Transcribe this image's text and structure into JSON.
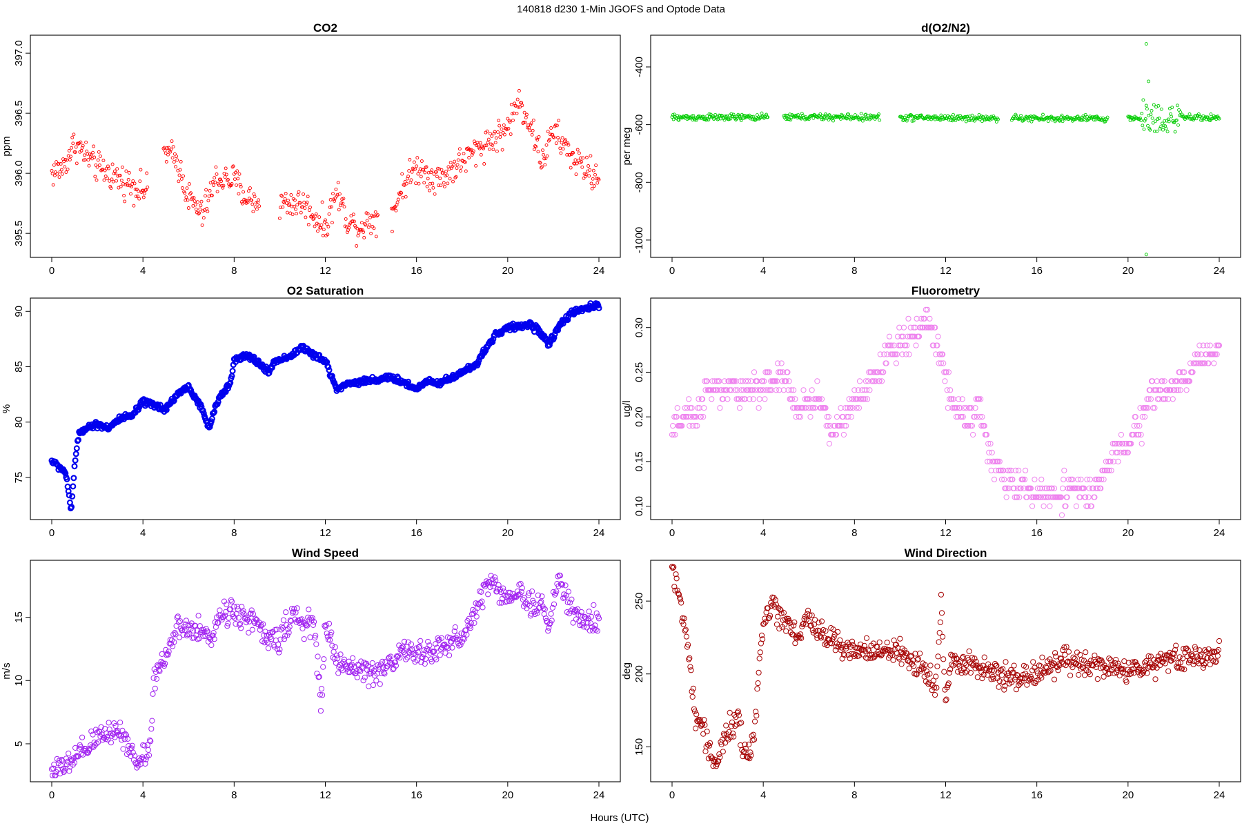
{
  "figure": {
    "title": "140818   d230   1-Min  JGOFS and Optode Data",
    "xlabel": "Hours (UTC)"
  },
  "chart_data": [
    {
      "type": "scatter",
      "id": "co2",
      "title": "CO2",
      "ylabel": "ppm",
      "color": "#ff0000",
      "xlim": [
        0,
        24
      ],
      "xticks": [
        0,
        4,
        8,
        12,
        16,
        20,
        24
      ],
      "ylim": [
        395.3,
        397.15
      ],
      "yticks": [
        "395.5",
        "396.0",
        "396.5",
        "397.0"
      ],
      "gaps": [
        [
          4.2,
          4.9
        ],
        [
          9.1,
          10.0
        ],
        [
          14.3,
          14.9
        ]
      ],
      "series": [
        {
          "name": "CO2",
          "knots": [
            [
              0,
              396.0
            ],
            [
              0.5,
              396.05
            ],
            [
              1.0,
              396.25
            ],
            [
              1.5,
              396.15
            ],
            [
              2.0,
              396.05
            ],
            [
              3.0,
              395.95
            ],
            [
              4.2,
              395.85
            ],
            [
              4.9,
              396.2
            ],
            [
              5.5,
              396.1
            ],
            [
              6.0,
              395.8
            ],
            [
              6.6,
              395.65
            ],
            [
              7.2,
              395.95
            ],
            [
              8.0,
              395.95
            ],
            [
              8.5,
              395.8
            ],
            [
              9.1,
              395.75
            ],
            [
              10.0,
              395.75
            ],
            [
              11.0,
              395.75
            ],
            [
              12.0,
              395.55
            ],
            [
              12.5,
              395.85
            ],
            [
              13.0,
              395.6
            ],
            [
              13.5,
              395.55
            ],
            [
              14.3,
              395.65
            ],
            [
              14.9,
              395.65
            ],
            [
              15.4,
              395.9
            ],
            [
              16.0,
              396.05
            ],
            [
              17.0,
              395.95
            ],
            [
              18.0,
              396.1
            ],
            [
              19.0,
              396.25
            ],
            [
              19.9,
              396.35
            ],
            [
              20.5,
              396.6
            ],
            [
              21.0,
              396.4
            ],
            [
              21.5,
              396.1
            ],
            [
              22.0,
              396.35
            ],
            [
              23.0,
              396.1
            ],
            [
              24.0,
              395.95
            ]
          ],
          "noise": 0.09,
          "clip": [
            395.3,
            397.1
          ]
        }
      ],
      "annotations": []
    },
    {
      "type": "scatter",
      "id": "do2n2",
      "title": "d(O2/N2)",
      "ylabel": "per meg",
      "color": "#00cc00",
      "xlim": [
        0,
        24
      ],
      "xticks": [
        0,
        4,
        8,
        12,
        16,
        20,
        24
      ],
      "ylim": [
        -1060,
        -290
      ],
      "yticks": [
        "-1000",
        "-800",
        "-600",
        "-400"
      ],
      "gaps": [
        [
          4.2,
          4.9
        ],
        [
          9.1,
          10.0
        ],
        [
          14.3,
          14.9
        ],
        [
          19.1,
          20.0
        ]
      ],
      "series": [
        {
          "name": "d(O2/N2)",
          "knots": [
            [
              0,
              -575
            ],
            [
              4.2,
              -575
            ],
            [
              4.9,
              -573
            ],
            [
              9.1,
              -575
            ],
            [
              10.0,
              -575
            ],
            [
              14.3,
              -578
            ],
            [
              14.9,
              -578
            ],
            [
              19.1,
              -580
            ],
            [
              20.0,
              -578
            ],
            [
              24.0,
              -575
            ]
          ],
          "noise": 8,
          "noise_after": [
            20.6,
            22.3,
            45
          ],
          "clip": [
            -1060,
            -290
          ]
        }
      ],
      "annotations": [
        {
          "x": 20.8,
          "y": -320
        },
        {
          "x": 20.8,
          "y": -1050
        },
        {
          "x": 20.9,
          "y": -450
        }
      ]
    },
    {
      "type": "scatter",
      "id": "o2sat",
      "title": "O2 Saturation",
      "ylabel": "%",
      "color": "#0000ee",
      "xlim": [
        0,
        24
      ],
      "xticks": [
        0,
        4,
        8,
        12,
        16,
        20,
        24
      ],
      "ylim": [
        71.2,
        91.2
      ],
      "yticks": [
        "75",
        "80",
        "85",
        "90"
      ],
      "gaps": [],
      "series": [
        {
          "name": "O2 Saturation",
          "knots": [
            [
              0,
              76.5
            ],
            [
              0.3,
              76
            ],
            [
              0.6,
              75.5
            ],
            [
              0.85,
              72
            ],
            [
              1.0,
              76
            ],
            [
              1.2,
              79
            ],
            [
              1.5,
              79.5
            ],
            [
              2.0,
              79.8
            ],
            [
              2.5,
              79.5
            ],
            [
              3.0,
              80.3
            ],
            [
              3.5,
              80.5
            ],
            [
              4.0,
              81.8
            ],
            [
              4.5,
              81.5
            ],
            [
              5.0,
              81.2
            ],
            [
              5.5,
              82.5
            ],
            [
              6.0,
              83.2
            ],
            [
              6.5,
              81.5
            ],
            [
              6.9,
              79.5
            ],
            [
              7.3,
              82
            ],
            [
              7.8,
              83.5
            ],
            [
              8.0,
              85.5
            ],
            [
              8.5,
              86
            ],
            [
              9.0,
              85.5
            ],
            [
              9.5,
              84.5
            ],
            [
              9.8,
              85.5
            ],
            [
              10.5,
              86
            ],
            [
              11.0,
              86.8
            ],
            [
              11.5,
              86
            ],
            [
              12.0,
              85.5
            ],
            [
              12.5,
              83
            ],
            [
              13.0,
              83.5
            ],
            [
              14.0,
              83.8
            ],
            [
              15.0,
              84
            ],
            [
              16.0,
              83
            ],
            [
              16.5,
              83.8
            ],
            [
              17.0,
              83.5
            ],
            [
              17.5,
              84
            ],
            [
              18.5,
              85
            ],
            [
              19.0,
              86.5
            ],
            [
              19.5,
              88
            ],
            [
              20.0,
              88.5
            ],
            [
              21.0,
              88.8
            ],
            [
              21.5,
              88
            ],
            [
              21.8,
              87
            ],
            [
              22.2,
              88.5
            ],
            [
              22.6,
              89.5
            ],
            [
              23.0,
              90
            ],
            [
              23.5,
              90.3
            ],
            [
              24.0,
              90.6
            ]
          ],
          "noise": 0.2,
          "clip": [
            71.3,
            91.1
          ]
        }
      ],
      "annotations": []
    },
    {
      "type": "scatter",
      "id": "fluor",
      "title": "Fluorometry",
      "ylabel": "ug/l",
      "color": "#ee82ee",
      "xlim": [
        0,
        24
      ],
      "xticks": [
        0,
        4,
        8,
        12,
        16,
        20,
        24
      ],
      "ylim": [
        0.085,
        0.333
      ],
      "yticks": [
        "0.10",
        "0.15",
        "0.20",
        "0.25",
        "0.30"
      ],
      "gaps": [],
      "series": [
        {
          "name": "Fluorometry",
          "knots": [
            [
              0,
              0.18
            ],
            [
              0.5,
              0.2
            ],
            [
              1.0,
              0.2
            ],
            [
              1.5,
              0.23
            ],
            [
              2.5,
              0.23
            ],
            [
              3.5,
              0.23
            ],
            [
              4.5,
              0.24
            ],
            [
              5.0,
              0.24
            ],
            [
              5.5,
              0.21
            ],
            [
              6.5,
              0.22
            ],
            [
              7.0,
              0.18
            ],
            [
              7.5,
              0.2
            ],
            [
              8.5,
              0.23
            ],
            [
              9.5,
              0.27
            ],
            [
              10.5,
              0.29
            ],
            [
              11.2,
              0.31
            ],
            [
              11.8,
              0.27
            ],
            [
              12.2,
              0.22
            ],
            [
              13.0,
              0.2
            ],
            [
              13.5,
              0.21
            ],
            [
              14.0,
              0.15
            ],
            [
              14.5,
              0.13
            ],
            [
              15.5,
              0.12
            ],
            [
              16.5,
              0.11
            ],
            [
              17.5,
              0.12
            ],
            [
              18.5,
              0.11
            ],
            [
              19.0,
              0.14
            ],
            [
              19.5,
              0.16
            ],
            [
              20.0,
              0.17
            ],
            [
              20.6,
              0.19
            ],
            [
              21.0,
              0.23
            ],
            [
              22.0,
              0.23
            ],
            [
              22.5,
              0.24
            ],
            [
              23.0,
              0.26
            ],
            [
              23.5,
              0.27
            ],
            [
              24.0,
              0.28
            ]
          ],
          "noise": 0.012,
          "quantize": 0.01,
          "clip": [
            0.09,
            0.33
          ]
        }
      ],
      "annotations": []
    },
    {
      "type": "scatter",
      "id": "wspd",
      "title": "Wind Speed",
      "ylabel": "m/s",
      "color": "#a020f0",
      "xlim": [
        0,
        24
      ],
      "xticks": [
        0,
        4,
        8,
        12,
        16,
        20,
        24
      ],
      "ylim": [
        2.0,
        19.5
      ],
      "yticks": [
        "5",
        "10",
        "15"
      ],
      "gaps": [],
      "series": [
        {
          "name": "Wind Speed",
          "knots": [
            [
              0,
              3.0
            ],
            [
              0.5,
              3.0
            ],
            [
              1.0,
              3.8
            ],
            [
              1.5,
              4.5
            ],
            [
              2.0,
              5.5
            ],
            [
              2.5,
              6.0
            ],
            [
              3.0,
              6.0
            ],
            [
              3.5,
              4.5
            ],
            [
              3.8,
              3.2
            ],
            [
              4.0,
              4.2
            ],
            [
              4.3,
              4.5
            ],
            [
              4.5,
              10.5
            ],
            [
              5.0,
              12.0
            ],
            [
              5.5,
              14.0
            ],
            [
              6.0,
              14.0
            ],
            [
              7.0,
              13.5
            ],
            [
              7.5,
              15.5
            ],
            [
              8.0,
              15.5
            ],
            [
              8.5,
              15.0
            ],
            [
              9.0,
              14.5
            ],
            [
              9.5,
              13.0
            ],
            [
              10.0,
              13.5
            ],
            [
              10.5,
              15.0
            ],
            [
              11.0,
              14.5
            ],
            [
              11.5,
              14.5
            ],
            [
              11.8,
              8.0
            ],
            [
              12.0,
              14.5
            ],
            [
              12.5,
              11.5
            ],
            [
              13.0,
              11.0
            ],
            [
              13.5,
              11.0
            ],
            [
              14.0,
              10.5
            ],
            [
              14.5,
              11.0
            ],
            [
              15.0,
              11.5
            ],
            [
              15.5,
              12.5
            ],
            [
              16.0,
              12.0
            ],
            [
              17.0,
              12.5
            ],
            [
              18.0,
              13.5
            ],
            [
              18.5,
              15.0
            ],
            [
              19.0,
              17.5
            ],
            [
              19.5,
              17.5
            ],
            [
              20.0,
              16.5
            ],
            [
              20.5,
              17.0
            ],
            [
              21.0,
              16.0
            ],
            [
              21.5,
              16.0
            ],
            [
              21.8,
              14.0
            ],
            [
              22.2,
              18.0
            ],
            [
              22.6,
              16.5
            ],
            [
              23.0,
              15.0
            ],
            [
              23.5,
              14.5
            ],
            [
              24.0,
              15.0
            ]
          ],
          "noise": 0.7,
          "clip": [
            2.5,
            19.1
          ]
        }
      ],
      "annotations": []
    },
    {
      "type": "scatter",
      "id": "wdir",
      "title": "Wind Direction",
      "ylabel": "deg",
      "color": "#a50000",
      "xlim": [
        0,
        24
      ],
      "xticks": [
        0,
        4,
        8,
        12,
        16,
        20,
        24
      ],
      "ylim": [
        126,
        278
      ],
      "yticks": [
        "150",
        "200",
        "250"
      ],
      "gaps": [],
      "series": [
        {
          "name": "Wind Direction",
          "knots": [
            [
              0,
              274
            ],
            [
              0.2,
              265
            ],
            [
              0.4,
              240
            ],
            [
              0.6,
              230
            ],
            [
              0.8,
              205
            ],
            [
              1.0,
              170
            ],
            [
              1.3,
              165
            ],
            [
              1.6,
              150
            ],
            [
              1.9,
              138
            ],
            [
              2.2,
              150
            ],
            [
              2.5,
              162
            ],
            [
              2.9,
              168
            ],
            [
              3.1,
              150
            ],
            [
              3.3,
              140
            ],
            [
              3.6,
              160
            ],
            [
              4.0,
              235
            ],
            [
              4.4,
              250
            ],
            [
              4.7,
              240
            ],
            [
              5.2,
              235
            ],
            [
              5.5,
              225
            ],
            [
              6.0,
              238
            ],
            [
              6.5,
              228
            ],
            [
              7.0,
              225
            ],
            [
              7.5,
              220
            ],
            [
              8.0,
              215
            ],
            [
              9.0,
              215
            ],
            [
              10.0,
              215
            ],
            [
              11.0,
              205
            ],
            [
              11.6,
              190
            ],
            [
              11.8,
              250
            ],
            [
              12.0,
              180
            ],
            [
              12.3,
              210
            ],
            [
              13.0,
              210
            ],
            [
              14.0,
              200
            ],
            [
              15.0,
              198
            ],
            [
              16.0,
              200
            ],
            [
              17.0,
              210
            ],
            [
              18.0,
              205
            ],
            [
              19.0,
              205
            ],
            [
              20.0,
              202
            ],
            [
              21.0,
              205
            ],
            [
              21.5,
              212
            ],
            [
              22.0,
              210
            ],
            [
              23.0,
              210
            ],
            [
              24.0,
              215
            ]
          ],
          "noise": 6,
          "clip": [
            130,
            276
          ]
        }
      ],
      "annotations": []
    }
  ]
}
